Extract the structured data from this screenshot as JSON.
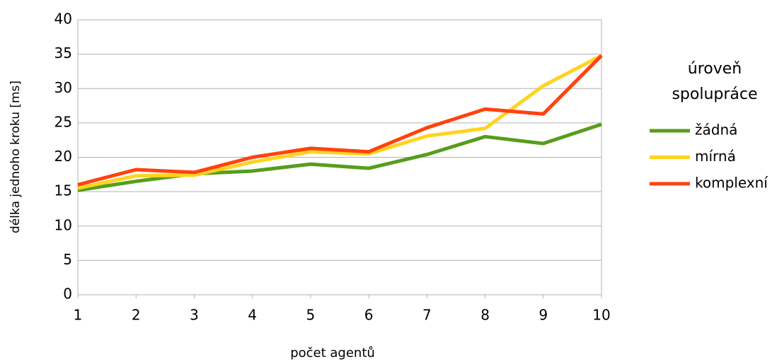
{
  "chart_data": {
    "type": "line",
    "x_label": "počet agentů",
    "y_label": "délka jednoho kroku [ms]",
    "legend_title": "úroveň spolupráce",
    "x": [
      1,
      2,
      3,
      4,
      5,
      6,
      7,
      8,
      9,
      10
    ],
    "xlim": [
      1,
      10
    ],
    "xticks": [
      1,
      2,
      3,
      4,
      5,
      6,
      7,
      8,
      9,
      10
    ],
    "ylim": [
      0,
      40
    ],
    "yticks": [
      0,
      5,
      10,
      15,
      20,
      25,
      30,
      35,
      40
    ],
    "grid": true,
    "legend": "right",
    "series": [
      {
        "name": "žádná",
        "color": "#579d1c",
        "values": [
          15.2,
          16.5,
          17.6,
          18.0,
          19.0,
          18.4,
          20.4,
          23.0,
          22.0,
          24.8
        ]
      },
      {
        "name": "mírná",
        "color": "#ffd320",
        "values": [
          15.5,
          17.3,
          17.4,
          19.3,
          20.8,
          20.5,
          23.1,
          24.2,
          30.4,
          34.8
        ]
      },
      {
        "name": "komplexní",
        "color": "#ff420e",
        "values": [
          16.0,
          18.2,
          17.8,
          20.0,
          21.3,
          20.8,
          24.3,
          27.0,
          26.3,
          34.8
        ]
      }
    ]
  }
}
